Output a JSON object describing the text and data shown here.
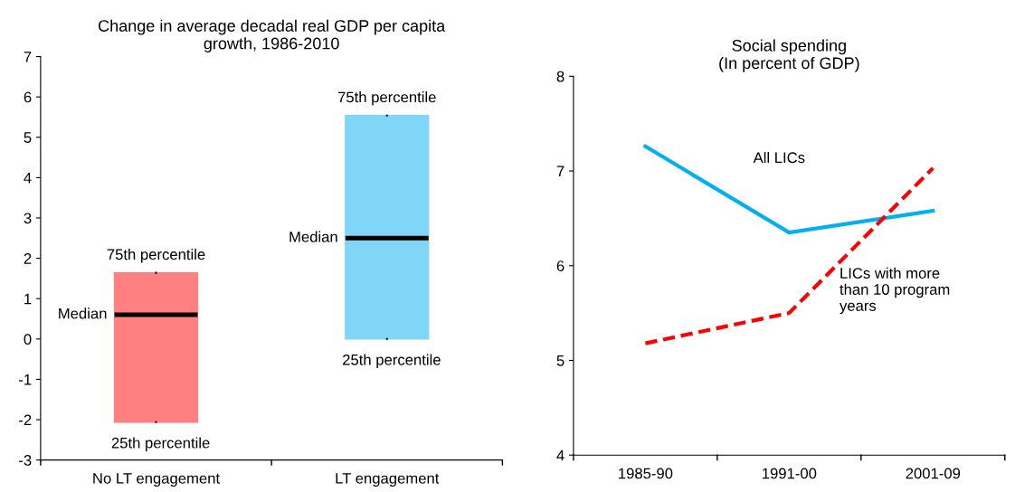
{
  "chart_data": [
    {
      "type": "box",
      "title": "Change in average decadal real GDP per capita\ngrowth, 1986-2010",
      "categories": [
        "No LT engagement",
        "LT engagement"
      ],
      "boxes": [
        {
          "low": -2.06,
          "q1": -2.06,
          "median": 0.6,
          "q3": 1.64,
          "high": 1.64
        },
        {
          "low": 0.0,
          "q1": 0.0,
          "median": 2.5,
          "q3": 5.54,
          "high": 5.54
        }
      ],
      "colors": [
        "#ff8080",
        "#80d6f6"
      ],
      "ylim": [
        -3,
        7
      ],
      "yticks": [
        -3,
        -2,
        -1,
        0,
        1,
        2,
        3,
        4,
        5,
        6,
        7
      ],
      "grid": false,
      "legend": false,
      "annotations": [
        {
          "text": "75th percentile",
          "x": "No LT engagement",
          "y": 1.64
        },
        "Median",
        {
          "text": "25th percentile",
          "x": "No LT engagement",
          "y": -2.06
        },
        {
          "text": "75th percentile",
          "x": "LT engagement",
          "y": 5.54
        },
        "Median",
        {
          "text": "25th percentile",
          "x": "LT engagement",
          "y": 0.0
        }
      ]
    },
    {
      "type": "line",
      "title": "Social spending\n(In percent of GDP)",
      "categories": [
        "1985-90",
        "1991-00",
        "2001-09"
      ],
      "series": [
        {
          "name": "All LICs",
          "color": "#00b0f0",
          "line_style": "solid",
          "values": [
            7.26,
            6.35,
            6.58
          ]
        },
        {
          "name": "LICs with more\nthan 10 program\nyears",
          "color": "#ff0000",
          "line_style": "dashed",
          "values": [
            5.18,
            5.5,
            7.03
          ]
        }
      ],
      "ylim": [
        4,
        8
      ],
      "yticks": [
        4,
        5,
        6,
        7,
        8
      ],
      "grid": false,
      "legend": false,
      "marker": "none"
    }
  ]
}
